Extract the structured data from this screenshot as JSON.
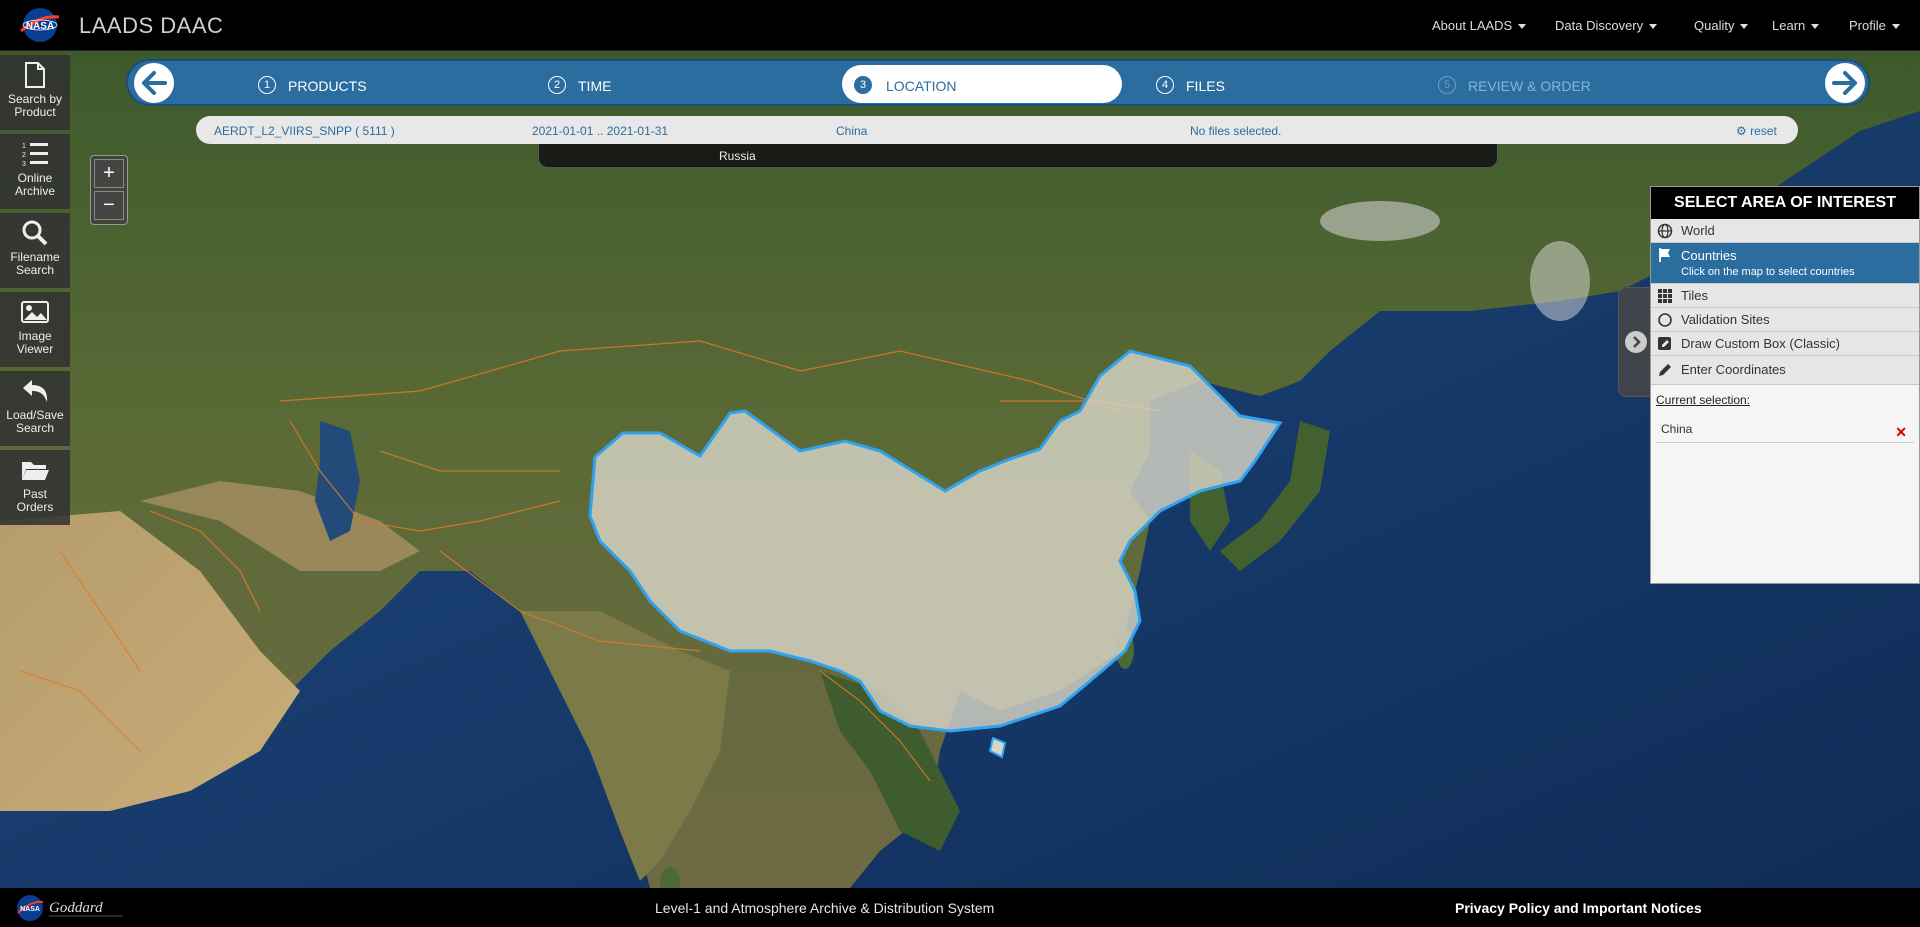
{
  "header": {
    "title": "LAADS DAAC",
    "logo": "NASA",
    "nav": [
      {
        "label": "About LAADS"
      },
      {
        "label": "Data Discovery"
      },
      {
        "label": "Quality"
      },
      {
        "label": "Learn"
      },
      {
        "label": "Profile"
      }
    ]
  },
  "sidebar": {
    "items": [
      {
        "label_1": "Search by",
        "label_2": "Product",
        "icon": "file-icon"
      },
      {
        "label_1": "Online",
        "label_2": "Archive",
        "icon": "list-icon"
      },
      {
        "label_1": "Filename",
        "label_2": "Search",
        "icon": "search-icon"
      },
      {
        "label_1": "Image",
        "label_2": "Viewer",
        "icon": "image-icon"
      },
      {
        "label_1": "Load/Save",
        "label_2": "Search",
        "icon": "undo-icon"
      },
      {
        "label_1": "Past",
        "label_2": "Orders",
        "icon": "folder-icon"
      }
    ]
  },
  "wizard": {
    "steps": [
      {
        "num": "1",
        "label": "PRODUCTS",
        "state": "done"
      },
      {
        "num": "2",
        "label": "TIME",
        "state": "done"
      },
      {
        "num": "3",
        "label": "LOCATION",
        "state": "active"
      },
      {
        "num": "4",
        "label": "FILES",
        "state": "done"
      },
      {
        "num": "5",
        "label": "REVIEW & ORDER",
        "state": "disabled"
      }
    ]
  },
  "summary": {
    "product": "AERDT_L2_VIIRS_SNPP ( 5111 )",
    "time": "2021-01-01 .. 2021-01-31",
    "location": "China",
    "files": "No files selected.",
    "reset": "reset"
  },
  "suggest": {
    "item": "Russia"
  },
  "zoom": {
    "in": "+",
    "out": "−"
  },
  "aoi": {
    "title": "SELECT AREA OF INTEREST",
    "options": [
      {
        "label": "World",
        "icon": "globe-icon"
      },
      {
        "label": "Countries",
        "sub": "Click on the map to select countries",
        "icon": "flag-icon",
        "selected": true
      },
      {
        "label": "Tiles",
        "icon": "grid-icon"
      },
      {
        "label": "Validation Sites",
        "icon": "circle-icon"
      },
      {
        "label": "Draw Custom Box (Classic)",
        "icon": "square-edit-icon"
      },
      {
        "label": "Enter Coordinates",
        "icon": "pencil-icon"
      }
    ],
    "current_label": "Current selection:",
    "current_value": "China",
    "remove": "✕"
  },
  "footer": {
    "center": "Level-1 and Atmosphere Archive & Distribution System",
    "right": "Privacy Policy and Important Notices",
    "logo_text": "Goddard"
  },
  "colors": {
    "accent": "#2b6d9f",
    "selection_outline": "#2fa3f0",
    "border_lines": "#e07a24"
  }
}
